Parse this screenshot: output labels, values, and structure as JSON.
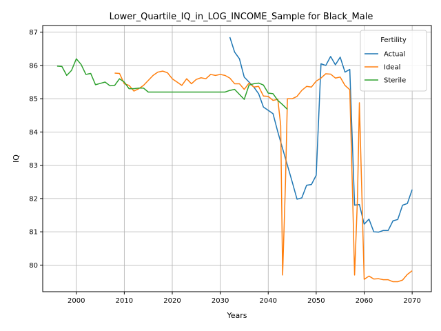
{
  "chart_data": {
    "type": "line",
    "title": "Lower_Quartile_IQ_in_LOG_INCOME_Sample for Black_Male",
    "xlabel": "Years",
    "ylabel": "IQ",
    "xlim": [
      1993,
      2074
    ],
    "ylim": [
      79.2,
      87.2
    ],
    "xticks": [
      2000,
      2010,
      2020,
      2030,
      2040,
      2050,
      2060,
      2070
    ],
    "yticks": [
      80,
      81,
      82,
      83,
      84,
      85,
      86,
      87
    ],
    "grid": true,
    "legend": {
      "title": "Fertility",
      "position": "top-right"
    },
    "series": [
      {
        "name": "Actual",
        "color": "#1f77b4",
        "x": [
          2032,
          2033,
          2034,
          2035,
          2036,
          2037,
          2038,
          2039,
          2040,
          2041,
          2042,
          2043,
          2044,
          2045,
          2046,
          2047,
          2048,
          2049,
          2050,
          2051,
          2052,
          2053,
          2054,
          2055,
          2056,
          2057,
          2058,
          2059,
          2060,
          2061,
          2062,
          2063,
          2064,
          2065,
          2066,
          2067,
          2068,
          2069,
          2070
        ],
        "y": [
          86.85,
          86.4,
          86.2,
          85.65,
          85.5,
          85.35,
          85.15,
          84.75,
          84.65,
          84.55,
          84.0,
          83.5,
          83.0,
          82.5,
          81.98,
          82.02,
          82.4,
          82.42,
          82.7,
          86.05,
          86.0,
          86.27,
          86.02,
          86.25,
          85.8,
          85.88,
          81.8,
          81.82,
          81.23,
          81.38,
          81.0,
          80.99,
          81.04,
          81.04,
          81.33,
          81.37,
          81.8,
          81.85,
          82.27
        ]
      },
      {
        "name": "Ideal",
        "color": "#ff7f0e",
        "x": [
          2008,
          2009,
          2010,
          2011,
          2012,
          2013,
          2014,
          2015,
          2016,
          2017,
          2018,
          2019,
          2020,
          2021,
          2022,
          2023,
          2024,
          2025,
          2026,
          2027,
          2028,
          2029,
          2030,
          2031,
          2032,
          2033,
          2034,
          2035,
          2036,
          2037,
          2038,
          2039,
          2040,
          2041,
          2042,
          2042.6,
          2043,
          2043.6,
          2044,
          2045,
          2046,
          2047,
          2048,
          2049,
          2050,
          2051,
          2052,
          2053,
          2054,
          2055,
          2056,
          2057,
          2057.6,
          2058,
          2058.6,
          2059,
          2060,
          2061,
          2062,
          2063,
          2064,
          2065,
          2066,
          2067,
          2068,
          2069,
          2070
        ],
        "y": [
          85.77,
          85.76,
          85.45,
          85.4,
          85.23,
          85.3,
          85.4,
          85.55,
          85.7,
          85.8,
          85.83,
          85.78,
          85.6,
          85.5,
          85.4,
          85.6,
          85.45,
          85.58,
          85.63,
          85.6,
          85.73,
          85.7,
          85.73,
          85.7,
          85.62,
          85.45,
          85.45,
          85.28,
          85.47,
          85.35,
          85.37,
          85.08,
          85.07,
          84.95,
          84.98,
          84.2,
          79.7,
          82.5,
          85.0,
          85.0,
          85.07,
          85.25,
          85.37,
          85.35,
          85.53,
          85.62,
          85.75,
          85.74,
          85.62,
          85.65,
          85.4,
          85.27,
          82.0,
          79.7,
          82.0,
          84.88,
          79.57,
          79.67,
          79.58,
          79.59,
          79.56,
          79.56,
          79.5,
          79.5,
          79.55,
          79.72,
          79.83
        ]
      },
      {
        "name": "Sterile",
        "color": "#2ca02c",
        "x": [
          1996,
          1997,
          1998,
          1999,
          2000,
          2001,
          2002,
          2003,
          2004,
          2005,
          2006,
          2007,
          2008,
          2009,
          2010,
          2011,
          2012,
          2013,
          2014,
          2015,
          2016,
          2017,
          2018,
          2019,
          2020,
          2021,
          2022,
          2023,
          2024,
          2025,
          2026,
          2027,
          2028,
          2029,
          2030,
          2031,
          2032,
          2033,
          2034,
          2035,
          2036,
          2037,
          2038,
          2039,
          2040,
          2041,
          2042,
          2043,
          2044
        ],
        "y": [
          85.98,
          85.97,
          85.7,
          85.85,
          86.2,
          86.03,
          85.73,
          85.76,
          85.42,
          85.46,
          85.5,
          85.39,
          85.4,
          85.6,
          85.5,
          85.3,
          85.3,
          85.32,
          85.32,
          85.2,
          85.2,
          85.2,
          85.2,
          85.2,
          85.2,
          85.2,
          85.2,
          85.2,
          85.2,
          85.2,
          85.2,
          85.2,
          85.2,
          85.2,
          85.2,
          85.2,
          85.25,
          85.28,
          85.13,
          84.98,
          85.41,
          85.45,
          85.47,
          85.41,
          85.17,
          85.15,
          84.95,
          84.82,
          84.68
        ]
      }
    ]
  }
}
